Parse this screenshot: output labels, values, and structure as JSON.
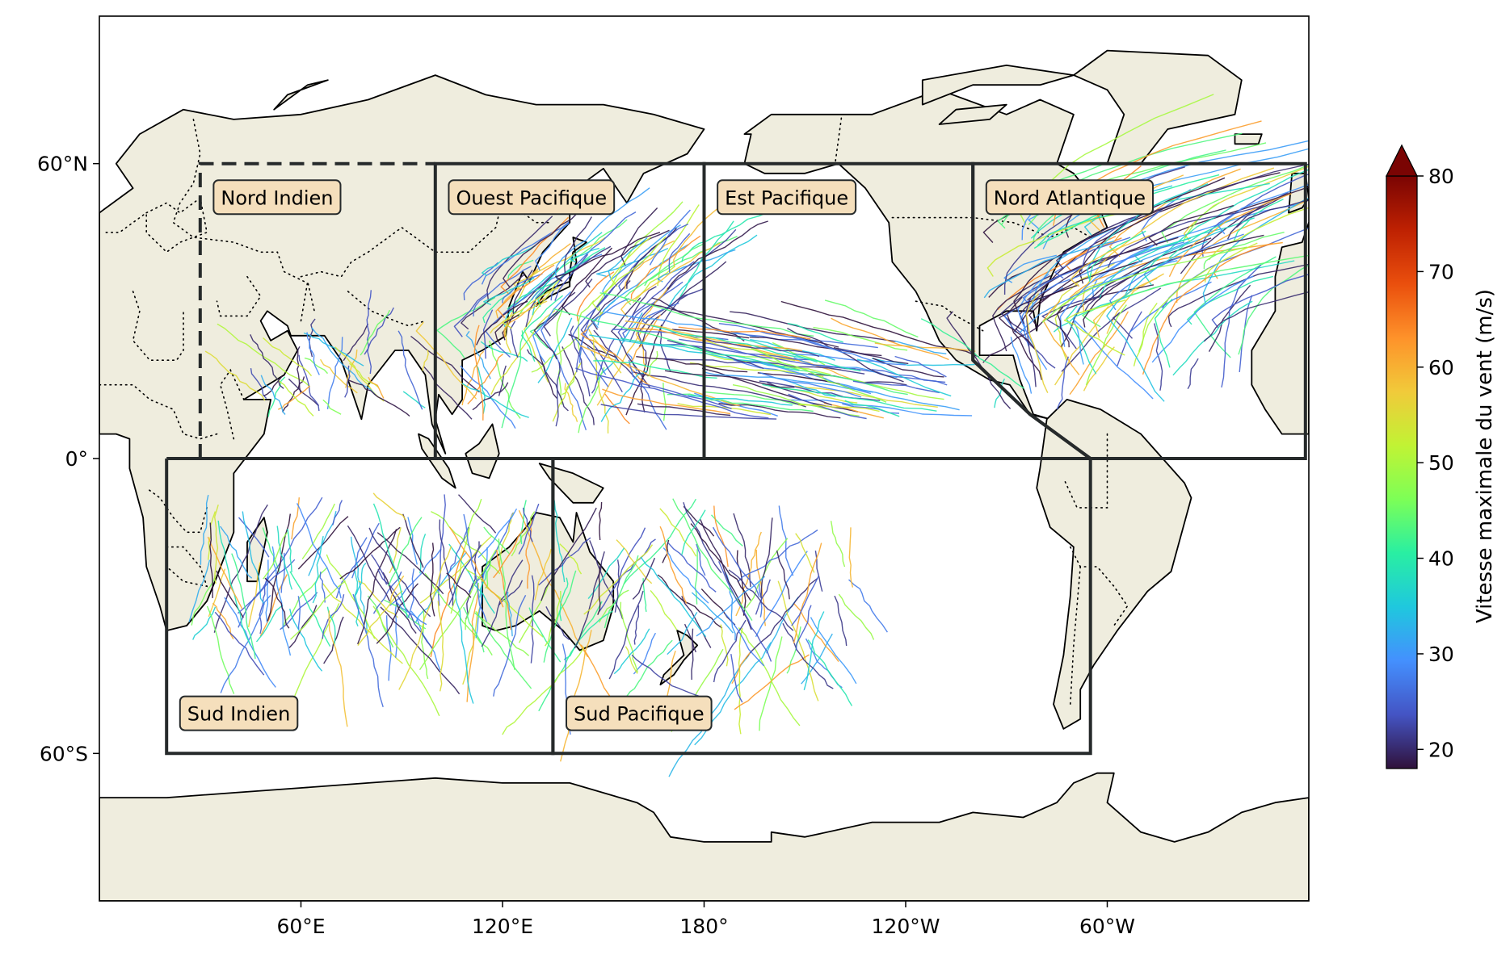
{
  "map": {
    "projection": "PlateCarree, central_longitude 180",
    "lon_range": [
      0,
      360
    ],
    "lat_range": [
      -90,
      90
    ],
    "land_color": "#efedde",
    "ocean_color": "#ffffff"
  },
  "axes": {
    "y_ticks": [
      {
        "lat": 60,
        "label": "60°N"
      },
      {
        "lat": 0,
        "label": "0°"
      },
      {
        "lat": -60,
        "label": "60°S"
      }
    ],
    "x_ticks": [
      {
        "lon": 60,
        "label": "60°E"
      },
      {
        "lon": 120,
        "label": "120°E"
      },
      {
        "lon": 180,
        "label": "180°"
      },
      {
        "lon": 240,
        "label": "120°W"
      },
      {
        "lon": 300,
        "label": "60°W"
      }
    ]
  },
  "basins": [
    {
      "key": "ni",
      "label": "Nord Indien",
      "box": [
        [
          30,
          0
        ],
        [
          30,
          60
        ],
        [
          100,
          60
        ]
      ],
      "dashed": true,
      "label_at": [
        34,
        53
      ]
    },
    {
      "key": "wp",
      "label": "Ouest Pacifique",
      "box": [
        [
          100,
          0
        ],
        [
          100,
          60
        ],
        [
          180,
          60
        ],
        [
          180,
          0
        ],
        [
          100,
          0
        ]
      ],
      "dashed": false,
      "label_at": [
        104,
        53
      ]
    },
    {
      "key": "ep",
      "label": "Est Pacifique",
      "box": [
        [
          180,
          0
        ],
        [
          180,
          60
        ],
        [
          260,
          60
        ],
        [
          260,
          20
        ],
        [
          277,
          9
        ],
        [
          295,
          0
        ],
        [
          180,
          0
        ]
      ],
      "dashed": false,
      "label_at": [
        184,
        53
      ]
    },
    {
      "key": "na",
      "label": "Nord Atlantique",
      "box": [
        [
          260,
          20
        ],
        [
          260,
          60
        ],
        [
          359,
          60
        ],
        [
          359,
          0
        ],
        [
          295,
          0
        ],
        [
          277,
          9
        ],
        [
          260,
          20
        ]
      ],
      "dashed": false,
      "label_at": [
        264,
        53
      ]
    },
    {
      "key": "si",
      "label": "Sud Indien",
      "box": [
        [
          20,
          0
        ],
        [
          20,
          -60
        ],
        [
          135,
          -60
        ],
        [
          135,
          0
        ],
        [
          20,
          0
        ]
      ],
      "dashed": false,
      "label_at": [
        24,
        -52
      ]
    },
    {
      "key": "sp",
      "label": "Sud Pacifique",
      "box": [
        [
          135,
          0
        ],
        [
          135,
          -60
        ],
        [
          295,
          -60
        ],
        [
          295,
          0
        ],
        [
          135,
          0
        ]
      ],
      "dashed": false,
      "label_at": [
        139,
        -52
      ]
    }
  ],
  "colorbar": {
    "label": "Vitesse maximale du vent (m/s)",
    "vmin": 18,
    "vmax": 80,
    "extend": "max",
    "ticks": [
      20,
      30,
      40,
      50,
      60,
      70,
      80
    ],
    "colormap": "turbo",
    "colors": [
      "#30123b",
      "#4454c4",
      "#4490fe",
      "#1fc8de",
      "#29efa2",
      "#7dff56",
      "#c1f334",
      "#f1ca3a",
      "#fe922a",
      "#ea4f0d",
      "#be2102",
      "#7a0403"
    ]
  },
  "tracks_note_free": {
    "clusters": [
      {
        "basin": "wp",
        "lon": [
          108,
          175
        ],
        "lat": [
          5,
          40
        ],
        "count": 140
      },
      {
        "basin": "ep",
        "lon": [
          182,
          262
        ],
        "lat": [
          8,
          25
        ],
        "count": 90
      },
      {
        "basin": "na",
        "lon": [
          262,
          340
        ],
        "lat": [
          10,
          48
        ],
        "count": 130
      },
      {
        "basin": "ni",
        "lon": [
          48,
          98
        ],
        "lat": [
          8,
          22
        ],
        "count": 35
      },
      {
        "basin": "si",
        "lon": [
          32,
          135
        ],
        "lat": [
          -33,
          -7
        ],
        "count": 150
      },
      {
        "basin": "sp",
        "lon": [
          137,
          225
        ],
        "lat": [
          -40,
          -8
        ],
        "count": 110
      }
    ]
  }
}
